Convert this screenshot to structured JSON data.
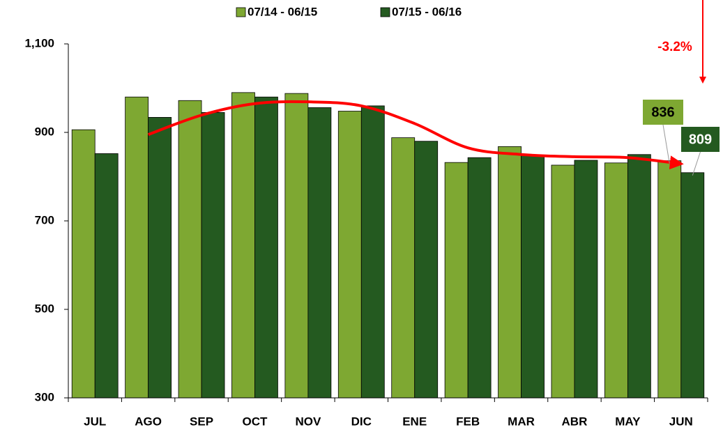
{
  "chart_data": {
    "type": "bar",
    "categories": [
      "JUL",
      "AGO",
      "SEP",
      "OCT",
      "NOV",
      "DIC",
      "ENE",
      "FEB",
      "MAR",
      "ABR",
      "MAY",
      "JUN"
    ],
    "series": [
      {
        "name": "07/14 - 06/15",
        "color": "#7ea832",
        "values": [
          906,
          980,
          972,
          990,
          988,
          948,
          888,
          832,
          868,
          826,
          831,
          836
        ]
      },
      {
        "name": "07/15 - 06/16",
        "color": "#245a20",
        "values": [
          852,
          934,
          945,
          980,
          956,
          960,
          880,
          843,
          849,
          837,
          850,
          809
        ]
      }
    ],
    "trend": {
      "color": "#ff0000",
      "values": [
        null,
        895,
        939,
        965,
        969,
        960,
        920,
        865,
        850,
        845,
        843,
        829
      ]
    },
    "annotation": "-3.2%",
    "ylim": [
      300,
      1100
    ],
    "yticks": [
      300,
      500,
      700,
      900,
      {
        "value": 1100,
        "label": "1,100"
      }
    ],
    "grid": false,
    "legend": "top"
  }
}
